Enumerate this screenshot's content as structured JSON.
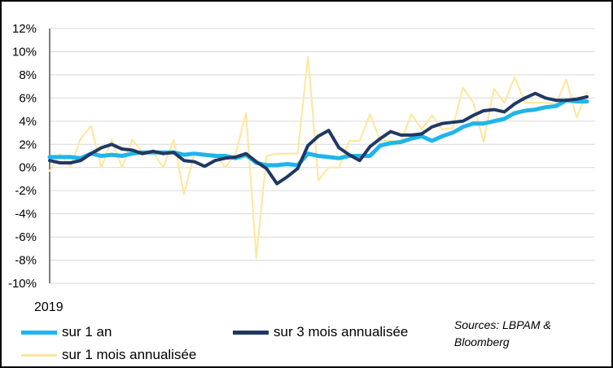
{
  "chart_data": {
    "type": "line",
    "title": "",
    "xlabel": "",
    "ylabel": "",
    "x_start_label": "2019",
    "ylim": [
      -10,
      12
    ],
    "yticks": [
      "12%",
      "10%",
      "8%",
      "6%",
      "4%",
      "2%",
      "0%",
      "-2%",
      "-4%",
      "-6%",
      "-8%",
      "-10%"
    ],
    "legend_position": "bottom",
    "source": "Sources: LBPAM & Bloomberg",
    "series": [
      {
        "name": "sur 1 mois annualisée",
        "color": "#FFE699",
        "values": [
          -0.3,
          1.2,
          0.0,
          2.5,
          3.6,
          0.0,
          2.4,
          0.0,
          2.4,
          1.3,
          1.3,
          0.0,
          2.4,
          -2.3,
          1.2,
          1.2,
          1.2,
          0.0,
          1.2,
          4.7,
          -7.8,
          1.0,
          1.2,
          1.2,
          1.2,
          9.6,
          -1.1,
          0.0,
          0.0,
          2.3,
          2.3,
          4.6,
          2.3,
          2.3,
          2.2,
          4.6,
          3.3,
          4.5,
          3.3,
          3.4,
          6.9,
          5.6,
          2.2,
          6.8,
          5.6,
          7.8,
          5.6,
          5.6,
          5.6,
          5.5,
          7.6,
          4.3,
          6.5
        ]
      },
      {
        "name": "sur 1 an",
        "color": "#1FB5EA",
        "values": [
          0.9,
          0.9,
          0.9,
          0.8,
          1.2,
          1.0,
          1.1,
          1.0,
          1.2,
          1.3,
          1.3,
          1.3,
          1.3,
          1.1,
          1.2,
          1.1,
          1.0,
          1.0,
          0.8,
          1.1,
          0.4,
          0.2,
          0.2,
          0.3,
          0.2,
          1.2,
          1.0,
          0.9,
          0.8,
          1.0,
          1.0,
          1.0,
          1.9,
          2.1,
          2.2,
          2.5,
          2.7,
          2.3,
          2.7,
          3.0,
          3.5,
          3.8,
          3.8,
          4.0,
          4.2,
          4.7,
          4.9,
          5.0,
          5.2,
          5.3,
          5.8,
          5.7,
          5.7
        ]
      },
      {
        "name": "sur 3 mois annualisée",
        "color": "#203864",
        "values": [
          0.6,
          0.4,
          0.4,
          0.6,
          1.2,
          1.7,
          2.0,
          1.6,
          1.5,
          1.2,
          1.4,
          1.2,
          1.3,
          0.6,
          0.5,
          0.1,
          0.6,
          0.8,
          0.9,
          1.2,
          0.5,
          -0.1,
          -1.4,
          -0.8,
          -0.1,
          1.9,
          2.7,
          3.2,
          1.7,
          1.1,
          0.6,
          1.8,
          2.5,
          3.1,
          2.8,
          2.8,
          2.9,
          3.5,
          3.8,
          3.9,
          4.0,
          4.5,
          4.9,
          5.0,
          4.8,
          5.5,
          6.0,
          6.4,
          6.0,
          5.8,
          5.8,
          5.9,
          6.1
        ]
      }
    ]
  }
}
